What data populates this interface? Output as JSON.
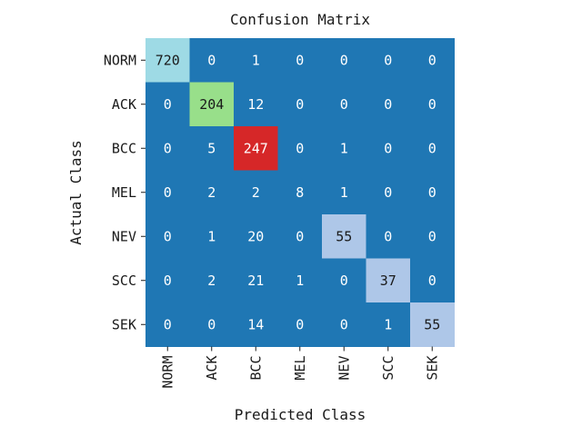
{
  "chart_data": {
    "type": "heatmap",
    "title": "Confusion Matrix",
    "xlabel": "Predicted Class",
    "ylabel": "Actual Class",
    "x_categories": [
      "NORM",
      "ACK",
      "BCC",
      "MEL",
      "NEV",
      "SCC",
      "SEK"
    ],
    "y_categories": [
      "NORM",
      "ACK",
      "BCC",
      "MEL",
      "NEV",
      "SCC",
      "SEK"
    ],
    "values": [
      [
        720,
        0,
        1,
        0,
        0,
        0,
        0
      ],
      [
        0,
        204,
        12,
        0,
        0,
        0,
        0
      ],
      [
        0,
        5,
        247,
        0,
        1,
        0,
        0
      ],
      [
        0,
        2,
        2,
        8,
        1,
        0,
        0
      ],
      [
        0,
        1,
        20,
        0,
        55,
        0,
        0
      ],
      [
        0,
        2,
        21,
        1,
        0,
        37,
        0
      ],
      [
        0,
        0,
        14,
        0,
        0,
        1,
        55
      ]
    ],
    "colors": {
      "default": "#1f77b4",
      "highlight": {
        "0,0": "#9edae5",
        "1,1": "#98df8a",
        "2,2": "#d62728",
        "4,4": "#aec7e8",
        "5,5": "#aec7e8",
        "6,6": "#aec7e8"
      },
      "text_on_dark": "#ffffff",
      "text_on_light": "#1a1a1a"
    }
  }
}
